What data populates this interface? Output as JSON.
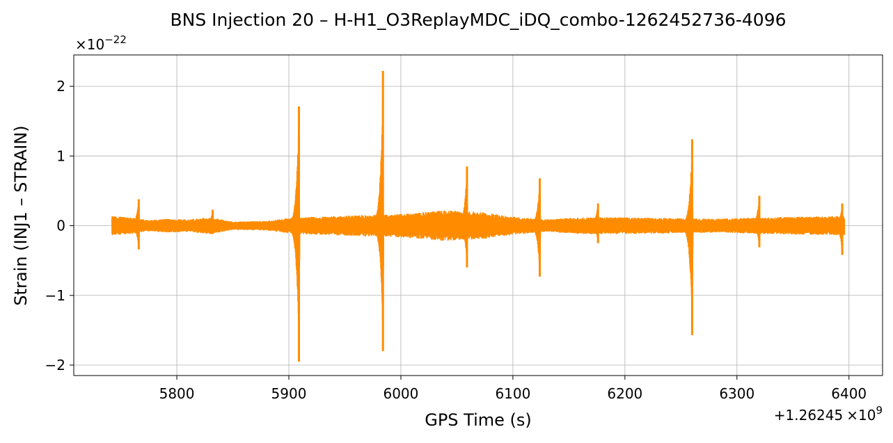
{
  "chart_data": {
    "type": "line",
    "title": "BNS Injection 20 – H-H1_O3ReplayMDC_iDQ_combo-1262452736-4096",
    "xlabel": "GPS Time (s)",
    "ylabel": "Strain (INJ1 – STRAIN)",
    "x_offset_text": {
      "prefix": "+1.26245",
      "mult": "×10",
      "exp": "9"
    },
    "y_scale_text": {
      "base": "×10",
      "exp": "−22"
    },
    "xlim": [
      5708,
      6430
    ],
    "ylim": [
      -2.15,
      2.45
    ],
    "x_ticks": [
      5800,
      5900,
      6000,
      6100,
      6200,
      6300,
      6400
    ],
    "x_tick_labels": [
      "5800",
      "5900",
      "6000",
      "6100",
      "6200",
      "6300",
      "6400"
    ],
    "y_ticks": [
      -2,
      -1,
      0,
      1,
      2
    ],
    "y_tick_labels": [
      "−2",
      "−1",
      "0",
      "1",
      "2"
    ],
    "grid": true,
    "series": [
      {
        "color": "#ff8c00",
        "x_start": 5742,
        "x_end": 6396,
        "background_envelope": [
          [
            5742,
            0.14
          ],
          [
            5760,
            0.12
          ],
          [
            5775,
            0.08
          ],
          [
            5790,
            0.1
          ],
          [
            5810,
            0.09
          ],
          [
            5830,
            0.12
          ],
          [
            5850,
            0.06
          ],
          [
            5880,
            0.07
          ],
          [
            5905,
            0.12
          ],
          [
            5930,
            0.13
          ],
          [
            5960,
            0.15
          ],
          [
            5990,
            0.16
          ],
          [
            6010,
            0.18
          ],
          [
            6040,
            0.22
          ],
          [
            6070,
            0.2
          ],
          [
            6100,
            0.13
          ],
          [
            6130,
            0.09
          ],
          [
            6160,
            0.12
          ],
          [
            6200,
            0.12
          ],
          [
            6240,
            0.11
          ],
          [
            6280,
            0.1
          ],
          [
            6320,
            0.12
          ],
          [
            6360,
            0.13
          ],
          [
            6396,
            0.14
          ]
        ],
        "spikes": [
          {
            "x": 5766,
            "max": 0.38,
            "min": -0.34
          },
          {
            "x": 5832,
            "max": 0.23,
            "min": -0.12
          },
          {
            "x": 5909,
            "max": 1.71,
            "min": -1.95
          },
          {
            "x": 5984,
            "max": 2.22,
            "min": -1.8
          },
          {
            "x": 6059,
            "max": 0.85,
            "min": -0.6
          },
          {
            "x": 6124,
            "max": 0.68,
            "min": -0.73
          },
          {
            "x": 6176,
            "max": 0.32,
            "min": -0.25
          },
          {
            "x": 6260,
            "max": 1.24,
            "min": -1.57
          },
          {
            "x": 6320,
            "max": 0.43,
            "min": -0.31
          },
          {
            "x": 6394,
            "max": 0.32,
            "min": -0.42
          }
        ]
      }
    ]
  }
}
